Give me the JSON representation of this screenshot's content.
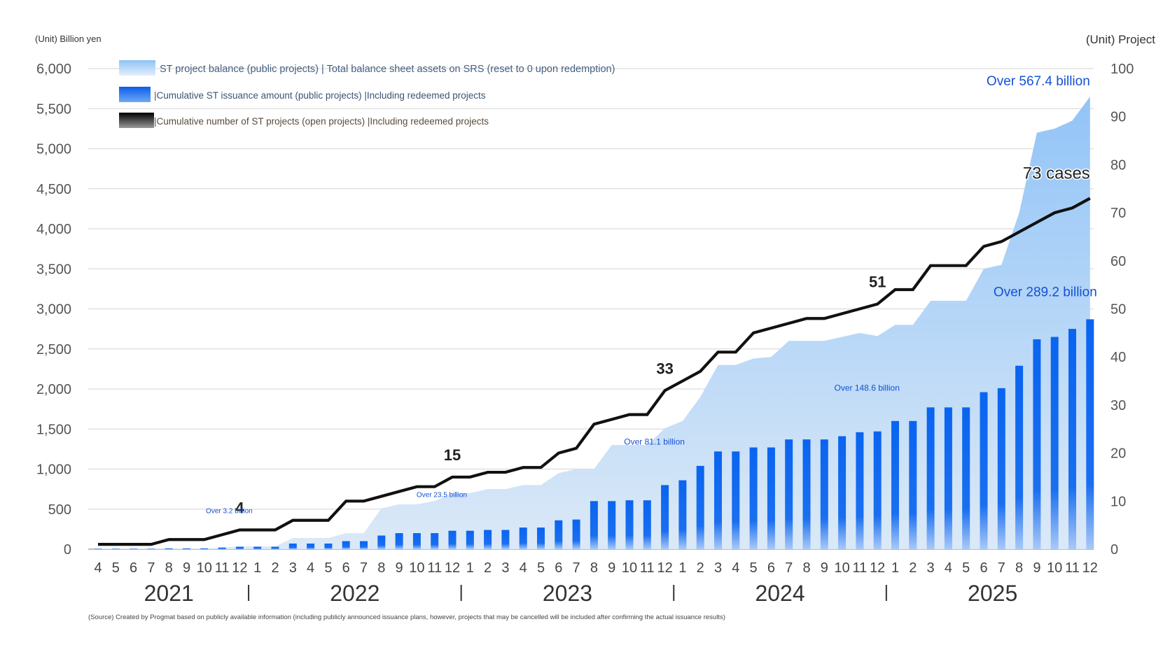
{
  "chart_data": {
    "type": "bar",
    "left_unit": "(Unit) Billion yen",
    "right_unit": "(Unit) Project",
    "left_axis": {
      "ylim": [
        0,
        6000
      ],
      "ticks": [
        "0",
        "500",
        "1,000",
        "1,500",
        "2,000",
        "2,500",
        "3,000",
        "3,500",
        "4,000",
        "4,500",
        "5,000",
        "5,500",
        "6,000"
      ]
    },
    "right_axis": {
      "ylim": [
        0,
        100
      ],
      "ticks": [
        "0",
        "10",
        "20",
        "30",
        "40",
        "50",
        "60",
        "70",
        "80",
        "90",
        "100"
      ]
    },
    "grid": true,
    "legend_position": "top-left",
    "months": [
      "4",
      "5",
      "6",
      "7",
      "8",
      "9",
      "10",
      "11",
      "12",
      "1",
      "2",
      "3",
      "4",
      "5",
      "6",
      "7",
      "8",
      "9",
      "10",
      "11",
      "12",
      "1",
      "2",
      "3",
      "4",
      "5",
      "6",
      "7",
      "8",
      "9",
      "10",
      "11",
      "12",
      "1",
      "2",
      "3",
      "4",
      "5",
      "6",
      "7",
      "8",
      "9",
      "10",
      "11",
      "12",
      "1",
      "2",
      "3",
      "4",
      "5",
      "6",
      "7",
      "8",
      "9",
      "10",
      "11",
      "12"
    ],
    "years": [
      {
        "label": "2021",
        "start": 0,
        "end": 8
      },
      {
        "label": "2022",
        "start": 9,
        "end": 20
      },
      {
        "label": "2023",
        "start": 21,
        "end": 32
      },
      {
        "label": "2024",
        "start": 33,
        "end": 44
      },
      {
        "label": "2025",
        "start": 45,
        "end": 56
      }
    ],
    "series": [
      {
        "name": "ST project balance (public projects) | Total balance sheet assets on SRS (reset to 0 upon redemption)",
        "type": "area",
        "axis": "left",
        "color": "#a9d0f5",
        "values": [
          5,
          5,
          5,
          5,
          5,
          5,
          5,
          20,
          35,
          35,
          35,
          140,
          140,
          140,
          200,
          200,
          510,
          560,
          560,
          600,
          700,
          700,
          750,
          750,
          800,
          800,
          950,
          1000,
          1000,
          1300,
          1300,
          1300,
          1510,
          1600,
          1900,
          2300,
          2300,
          2380,
          2400,
          2600,
          2600,
          2600,
          2650,
          2700,
          2660,
          2800,
          2800,
          3100,
          3100,
          3100,
          3500,
          3550,
          4200,
          5200,
          5250,
          5350,
          5650
        ]
      },
      {
        "name": "|Cumulative ST issuance amount (public projects) |Including redeemed projects",
        "type": "bar",
        "axis": "left",
        "color": "#1a6ff0",
        "values": [
          5,
          5,
          5,
          5,
          10,
          10,
          10,
          20,
          30,
          30,
          30,
          70,
          70,
          70,
          100,
          100,
          170,
          200,
          200,
          200,
          230,
          230,
          240,
          240,
          270,
          270,
          360,
          370,
          600,
          600,
          610,
          610,
          800,
          860,
          1040,
          1220,
          1220,
          1270,
          1270,
          1370,
          1370,
          1370,
          1410,
          1460,
          1470,
          1600,
          1600,
          1770,
          1770,
          1770,
          1960,
          2010,
          2290,
          2620,
          2650,
          2750,
          2870
        ]
      },
      {
        "name": "|Cumulative number of ST projects (open projects) |Including redeemed projects",
        "type": "line",
        "axis": "right",
        "color": "#000000",
        "values": [
          1,
          1,
          1,
          1,
          2,
          2,
          2,
          3,
          4,
          4,
          4,
          6,
          6,
          6,
          10,
          10,
          11,
          12,
          13,
          13,
          15,
          15,
          16,
          16,
          17,
          17,
          20,
          21,
          26,
          27,
          28,
          28,
          33,
          35,
          37,
          41,
          41,
          45,
          46,
          47,
          48,
          48,
          49,
          50,
          51,
          54,
          54,
          59,
          59,
          59,
          63,
          64,
          66,
          68,
          70,
          71,
          73
        ]
      }
    ],
    "annotations": [
      {
        "text": "4",
        "index": 8,
        "series": "line"
      },
      {
        "text": "15",
        "index": 20,
        "series": "line"
      },
      {
        "text": "33",
        "index": 32,
        "series": "line"
      },
      {
        "text": "51",
        "index": 44,
        "series": "line"
      },
      {
        "text": "73 cases",
        "index": 56,
        "series": "line"
      },
      {
        "text": "Over 3.2 billion",
        "index": 8,
        "series": "bar"
      },
      {
        "text": "Over 23.5 billion",
        "index": 20,
        "series": "bar"
      },
      {
        "text": "Over 81.1 billion",
        "index": 32,
        "series": "bar"
      },
      {
        "text": "Over 148.6 billion",
        "index": 44,
        "series": "bar"
      },
      {
        "text": "Over 289.2 billion",
        "index": 56,
        "series": "bar"
      },
      {
        "text": "Over 567.4 billion",
        "index": 56,
        "series": "area"
      }
    ],
    "source": "(Source) Created by Progmat based on publicly available information (including publicly announced issuance plans, however, projects that may be cancelled will be included after confirming the actual issuance results)"
  }
}
